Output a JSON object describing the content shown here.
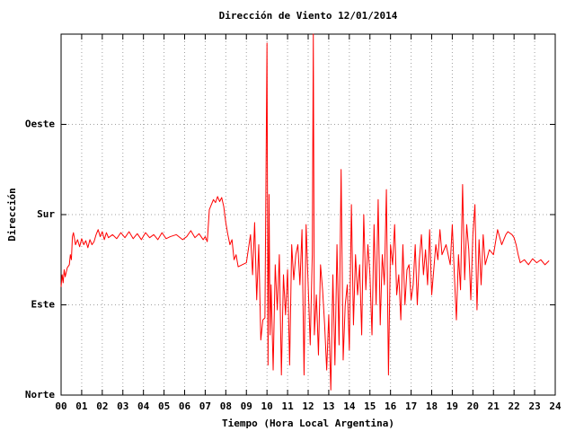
{
  "chart_data": {
    "type": "line",
    "title": "Dirección de Viento 12/01/2014",
    "xlabel": "Tiempo (Hora Local Argentina)",
    "ylabel": "Dirección",
    "xlim": [
      0,
      24
    ],
    "ylim": [
      0,
      360
    ],
    "grid": true,
    "xticks": [
      {
        "value": 0,
        "label": "00"
      },
      {
        "value": 1,
        "label": "01"
      },
      {
        "value": 2,
        "label": "02"
      },
      {
        "value": 3,
        "label": "03"
      },
      {
        "value": 4,
        "label": "04"
      },
      {
        "value": 5,
        "label": "05"
      },
      {
        "value": 6,
        "label": "06"
      },
      {
        "value": 7,
        "label": "07"
      },
      {
        "value": 8,
        "label": "08"
      },
      {
        "value": 9,
        "label": "09"
      },
      10,
      11,
      12,
      13,
      14,
      15,
      16,
      17,
      18,
      19,
      20,
      21,
      22,
      23,
      24
    ],
    "yticks": [
      {
        "value": 0,
        "label": "Norte"
      },
      {
        "value": 90,
        "label": "Este"
      },
      {
        "value": 180,
        "label": "Sur"
      },
      {
        "value": 270,
        "label": "Oeste"
      }
    ],
    "x": [
      0.0,
      0.05,
      0.1,
      0.15,
      0.2,
      0.3,
      0.4,
      0.45,
      0.5,
      0.55,
      0.6,
      0.7,
      0.8,
      0.9,
      1.0,
      1.1,
      1.2,
      1.3,
      1.4,
      1.5,
      1.6,
      1.7,
      1.8,
      1.9,
      2.0,
      2.1,
      2.2,
      2.3,
      2.5,
      2.7,
      2.9,
      3.1,
      3.3,
      3.5,
      3.7,
      3.9,
      4.1,
      4.3,
      4.5,
      4.7,
      4.9,
      5.1,
      5.3,
      5.6,
      5.9,
      6.1,
      6.3,
      6.5,
      6.7,
      6.9,
      7.0,
      7.1,
      7.2,
      7.3,
      7.4,
      7.5,
      7.6,
      7.7,
      7.8,
      7.9,
      8.0,
      8.1,
      8.2,
      8.3,
      8.4,
      8.5,
      8.6,
      8.8,
      9.0,
      9.2,
      9.3,
      9.4,
      9.5,
      9.6,
      9.7,
      9.8,
      9.9,
      10.0,
      10.05,
      10.1,
      10.15,
      10.2,
      10.3,
      10.4,
      10.5,
      10.6,
      10.7,
      10.8,
      10.9,
      11.0,
      11.1,
      11.2,
      11.3,
      11.4,
      11.5,
      11.6,
      11.7,
      11.8,
      11.9,
      12.0,
      12.1,
      12.2,
      12.25,
      12.3,
      12.4,
      12.5,
      12.6,
      12.7,
      12.8,
      12.9,
      13.0,
      13.1,
      13.2,
      13.3,
      13.4,
      13.5,
      13.6,
      13.7,
      13.8,
      13.9,
      14.0,
      14.1,
      14.2,
      14.3,
      14.4,
      14.5,
      14.6,
      14.7,
      14.8,
      14.9,
      15.0,
      15.1,
      15.2,
      15.3,
      15.4,
      15.5,
      15.6,
      15.7,
      15.8,
      15.9,
      16.0,
      16.1,
      16.2,
      16.3,
      16.4,
      16.5,
      16.6,
      16.7,
      16.8,
      16.9,
      17.0,
      17.1,
      17.2,
      17.3,
      17.4,
      17.5,
      17.6,
      17.7,
      17.8,
      17.9,
      18.0,
      18.1,
      18.2,
      18.3,
      18.4,
      18.5,
      18.7,
      18.9,
      19.0,
      19.1,
      19.2,
      19.3,
      19.4,
      19.5,
      19.6,
      19.7,
      19.8,
      19.9,
      20.0,
      20.1,
      20.2,
      20.3,
      20.4,
      20.5,
      20.6,
      20.8,
      21.0,
      21.2,
      21.4,
      21.6,
      21.7,
      21.9,
      22.0,
      22.1,
      22.2,
      22.3,
      22.5,
      22.7,
      22.9,
      23.1,
      23.3,
      23.5,
      23.7
    ],
    "series": [
      {
        "name": "Dirección",
        "color": "#ff0000",
        "values": [
          108,
          120,
          112,
          125,
          118,
          127,
          130,
          140,
          135,
          158,
          162,
          150,
          155,
          148,
          156,
          150,
          154,
          147,
          155,
          150,
          153,
          160,
          165,
          158,
          163,
          155,
          162,
          157,
          160,
          156,
          162,
          157,
          163,
          156,
          161,
          155,
          162,
          157,
          160,
          155,
          162,
          156,
          158,
          160,
          155,
          158,
          164,
          157,
          161,
          155,
          158,
          153,
          185,
          190,
          195,
          192,
          198,
          193,
          197,
          188,
          172,
          160,
          150,
          155,
          135,
          140,
          128,
          130,
          132,
          160,
          120,
          172,
          95,
          150,
          55,
          75,
          77,
          351,
          30,
          200,
          60,
          110,
          25,
          130,
          85,
          140,
          20,
          120,
          80,
          125,
          30,
          150,
          115,
          140,
          150,
          110,
          165,
          20,
          170,
          110,
          50,
          140,
          360,
          60,
          100,
          40,
          130,
          105,
          70,
          25,
          80,
          5,
          120,
          30,
          150,
          50,
          225,
          35,
          90,
          110,
          45,
          190,
          70,
          140,
          100,
          130,
          60,
          180,
          105,
          150,
          120,
          60,
          170,
          90,
          195,
          70,
          140,
          110,
          205,
          20,
          150,
          130,
          170,
          100,
          120,
          75,
          150,
          90,
          125,
          130,
          95,
          110,
          150,
          90,
          135,
          160,
          120,
          145,
          110,
          165,
          100,
          125,
          150,
          135,
          165,
          140,
          150,
          130,
          170,
          120,
          75,
          140,
          105,
          210,
          115,
          170,
          145,
          95,
          160,
          190,
          85,
          155,
          110,
          160,
          130,
          145,
          140,
          165,
          150,
          160,
          163,
          160,
          157,
          150,
          140,
          132,
          135,
          130,
          136,
          132,
          135,
          130,
          134
        ]
      }
    ]
  }
}
